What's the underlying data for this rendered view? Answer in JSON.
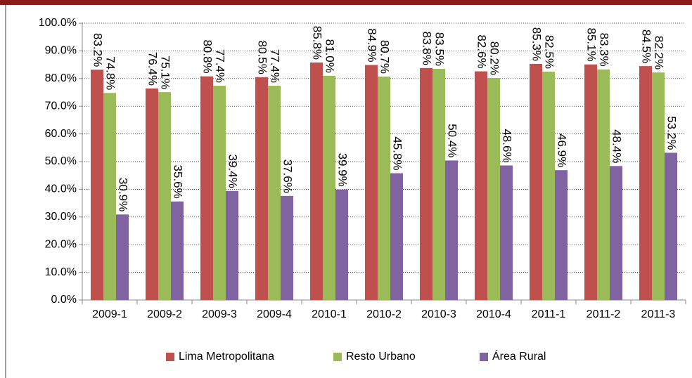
{
  "chart_data": {
    "type": "bar",
    "categories": [
      "2009-1",
      "2009-2",
      "2009-3",
      "2009-4",
      "2010-1",
      "2010-2",
      "2010-3",
      "2010-4",
      "2011-1",
      "2011-2",
      "2011-3"
    ],
    "series": [
      {
        "name": "Lima Metropolitana",
        "color": "#c0504d",
        "values": [
          83.2,
          76.4,
          80.8,
          80.5,
          85.8,
          84.9,
          83.8,
          82.6,
          85.3,
          85.1,
          84.5
        ],
        "value_labels": [
          "83.2%",
          "76.4%",
          "80.8%",
          "80.5%",
          "85.8%",
          "84.9%",
          "83.8%",
          "82.6%",
          "85.3%",
          "85.1%",
          "84.5%"
        ]
      },
      {
        "name": "Resto Urbano",
        "color": "#9bbb59",
        "values": [
          74.8,
          75.1,
          77.4,
          77.4,
          81.0,
          80.7,
          83.5,
          80.2,
          82.5,
          83.3,
          82.2
        ],
        "value_labels": [
          "74.8%",
          "75.1%",
          "77.4%",
          "77.4%",
          "81.0%",
          "80.7%",
          "83.5%",
          "80.2%",
          "82.5%",
          "83.3%",
          "82.2%"
        ]
      },
      {
        "name": "Área Rural",
        "color": "#8064a2",
        "values": [
          30.9,
          35.6,
          39.4,
          37.6,
          39.9,
          45.8,
          50.4,
          48.6,
          46.9,
          48.4,
          53.2
        ],
        "value_labels": [
          "30.9%",
          "35.6%",
          "39.4%",
          "37.6%",
          "39.9%",
          "45.8%",
          "50.4%",
          "48.6%",
          "46.9%",
          "48.4%",
          "53.2%"
        ]
      }
    ],
    "ylim": [
      0,
      100
    ],
    "yticks": [
      {
        "value": 0,
        "label": "0.0%"
      },
      {
        "value": 10,
        "label": "10.0%"
      },
      {
        "value": 20,
        "label": "20.0%"
      },
      {
        "value": 30,
        "label": "30.0%"
      },
      {
        "value": 40,
        "label": "40.0%"
      },
      {
        "value": 50,
        "label": "50.0%"
      },
      {
        "value": 60,
        "label": "60.0%"
      },
      {
        "value": 70,
        "label": "70.0%"
      },
      {
        "value": 80,
        "label": "80.0%"
      },
      {
        "value": 90,
        "label": "90.0%"
      },
      {
        "value": 100,
        "label": "100.0%"
      }
    ],
    "grid": true,
    "legend": "bottom"
  }
}
